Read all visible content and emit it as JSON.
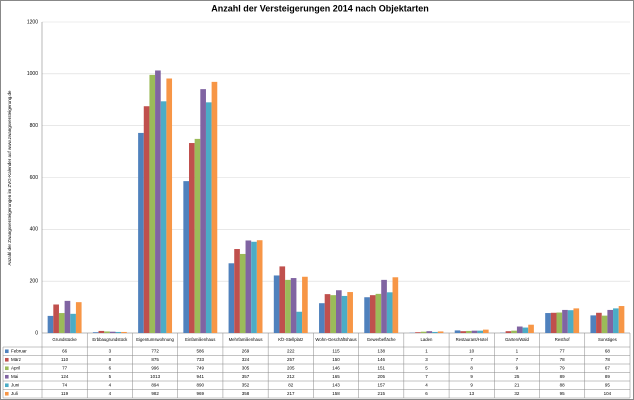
{
  "chart_data": {
    "type": "bar",
    "title": "Anzahl der Versteigerungen 2014 nach Objektarten",
    "y_label": "Anzahl der Zwangsversteigerungen im ZVG-Kalender auf www.zwangsversteigerung.de",
    "categories": [
      "Grundstücke",
      "Erbbaugrundstück",
      "Eigentumswohnung",
      "Einfamilienhaus",
      "Mehrfamilienhaus",
      "Kfz-Stellplatz",
      "Wohn-Geschäftshaus",
      "Gewerbefläche",
      "Laden",
      "Restaurant/Hotel",
      "Garten/Wald",
      "Resthof",
      "Sonstiges"
    ],
    "series": [
      {
        "name": "Februar",
        "color": "#4f81bd",
        "values": [
          66,
          3,
          772,
          586,
          269,
          222,
          115,
          138,
          1,
          10,
          1,
          77,
          68
        ]
      },
      {
        "name": "März",
        "color": "#c0504d",
        "values": [
          110,
          8,
          875,
          733,
          324,
          257,
          150,
          146,
          3,
          7,
          7,
          78,
          78
        ]
      },
      {
        "name": "April",
        "color": "#9bbb59",
        "values": [
          77,
          6,
          996,
          749,
          305,
          205,
          146,
          151,
          5,
          8,
          9,
          79,
          67
        ]
      },
      {
        "name": "Mai",
        "color": "#8064a2",
        "values": [
          124,
          5,
          1013,
          941,
          357,
          212,
          165,
          205,
          7,
          9,
          25,
          89,
          89
        ]
      },
      {
        "name": "Juni",
        "color": "#4bacc6",
        "values": [
          74,
          4,
          894,
          890,
          352,
          82,
          143,
          157,
          4,
          9,
          21,
          88,
          95
        ]
      },
      {
        "name": "Juli",
        "color": "#f79646",
        "values": [
          119,
          4,
          982,
          969,
          358,
          217,
          158,
          215,
          6,
          13,
          32,
          95,
          104
        ]
      }
    ],
    "ylim": [
      0,
      1200
    ],
    "yticks": [
      0,
      200,
      400,
      600,
      800,
      1000,
      1200
    ],
    "grid": true
  }
}
